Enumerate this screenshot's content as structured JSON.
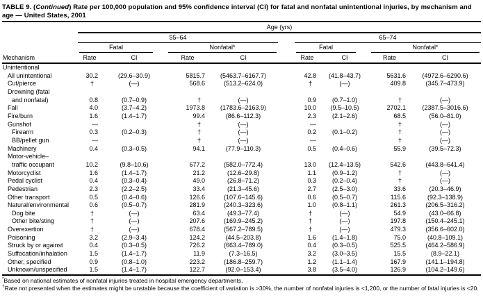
{
  "title": {
    "prefix": "TABLE 9. (",
    "continued": "Continued",
    "rest": ") Rate per 100,000 population and 95% confidence interval (CI) for fatal and nonfatal unintentional injuries, by mechanism and age — United States, 2001"
  },
  "table": {
    "header": {
      "age_span": "Age (yrs)",
      "mechanism": "Mechanism",
      "group_left": "55–64",
      "group_right": "65–74",
      "fatal_label": "Fatal",
      "nonfatal_label": "Nonfatal*",
      "rate_label": "Rate",
      "ci_label": "CI"
    },
    "rows": [
      {
        "label": "Unintentional",
        "indent": 0,
        "cells": [
          "",
          "",
          "",
          "",
          "",
          "",
          "",
          ""
        ]
      },
      {
        "label": "All unintentional",
        "indent": 1,
        "cells": [
          "30.2",
          "(29.6–30.9)",
          "5815.7",
          "(5463.7–6167.7)",
          "42.8",
          "(41.8–43.7)",
          "5631.6",
          "(4972.6–6290.6)"
        ]
      },
      {
        "label": "Cut/pierce",
        "indent": 1,
        "cells": [
          "†",
          "(—)",
          "568.6",
          "(513.2–624.0)",
          "†",
          "(—)",
          "409.8",
          "(345.7–473.9)"
        ]
      },
      {
        "label": "Drowning (fatal",
        "indent": 1,
        "cells": [
          "",
          "",
          "",
          "",
          "",
          "",
          "",
          ""
        ]
      },
      {
        "label": "and nonfatal)",
        "indent": 2,
        "cells": [
          "0.8",
          "(0.7–0.9)",
          "†",
          "(—)",
          "0.9",
          "(0.7–1.0)",
          "†",
          "(—)"
        ]
      },
      {
        "label": "Fall",
        "indent": 1,
        "cells": [
          "4.0",
          "(3.7–4.2)",
          "1973.8",
          "(1783.6–2163.9)",
          "10.0",
          "(9.5–10.5)",
          "2702.1",
          "(2387.5–3016.6)"
        ]
      },
      {
        "label": "Fire/burn",
        "indent": 1,
        "cells": [
          "1.6",
          "(1.4–1.7)",
          "99.4",
          "(86.6–112.3)",
          "2.3",
          "(2.1–2.6)",
          "68.5",
          "(56.0–81.0)"
        ]
      },
      {
        "label": "Gunshot",
        "indent": 1,
        "cells": [
          "—",
          "",
          "†",
          "(—)",
          "—",
          "",
          "†",
          "(—)"
        ]
      },
      {
        "label": "Firearm",
        "indent": 2,
        "cells": [
          "0.3",
          "(0.2–0.3)",
          "†",
          "(—)",
          "0.2",
          "(0.1–0.2)",
          "†",
          "(—)"
        ]
      },
      {
        "label": "BB/pellet gun",
        "indent": 2,
        "cells": [
          "—",
          "",
          "†",
          "(—)",
          "—",
          "",
          "†",
          "(—)"
        ]
      },
      {
        "label": "Machinery",
        "indent": 1,
        "cells": [
          "0.4",
          "(0.3–0.5)",
          "94.1",
          "(77.9–110.3)",
          "0.5",
          "(0.4–0.6)",
          "55.9",
          "(39.5–72.3)"
        ]
      },
      {
        "label": "Motor-vehicle–",
        "indent": 1,
        "cells": [
          "",
          "",
          "",
          "",
          "",
          "",
          "",
          ""
        ]
      },
      {
        "label": "traffic occupant",
        "indent": 2,
        "cells": [
          "10.2",
          "(9.8–10.6)",
          "677.2",
          "(582.0–772.4)",
          "13.0",
          "(12.4–13.5)",
          "542.6",
          "(443.8–641.4)"
        ]
      },
      {
        "label": "Motorcyclist",
        "indent": 1,
        "cells": [
          "1.6",
          "(1.4–1.7)",
          "21.2",
          "(12.6–29.8)",
          "1.1",
          "(0.9–1.2)",
          "†",
          "(—)"
        ]
      },
      {
        "label": "Pedal cyclist",
        "indent": 1,
        "cells": [
          "0.4",
          "(0.3–0.4)",
          "49.0",
          "(26.8–71.2)",
          "0.3",
          "(0.2–0.4)",
          "†",
          "(—)"
        ]
      },
      {
        "label": "Pedestrian",
        "indent": 1,
        "cells": [
          "2.3",
          "(2.2–2.5)",
          "33.4",
          "(21.3–45.6)",
          "2.7",
          "(2.5–3.0)",
          "33.6",
          "(20.3–46.9)"
        ]
      },
      {
        "label": "Other transport",
        "indent": 1,
        "cells": [
          "0.5",
          "(0.4–0.6)",
          "126.6",
          "(107.6–145.6)",
          "0.6",
          "(0.5–0.7)",
          "115.6",
          "(92.3–138.9)"
        ]
      },
      {
        "label": "Natural/environmental",
        "indent": 1,
        "cells": [
          "0.6",
          "(0.5–0.7)",
          "281.9",
          "(240.3–323.6)",
          "1.0",
          "(0.8–1.1)",
          "261.3",
          "(206.5–316.2)"
        ]
      },
      {
        "label": "Dog bite",
        "indent": 2,
        "cells": [
          "†",
          "(—)",
          "63.4",
          "(49.3–77.4)",
          "†",
          "(—)",
          "54.9",
          "(43.0–66.8)"
        ]
      },
      {
        "label": "Other bite/sting",
        "indent": 2,
        "cells": [
          "†",
          "(—)",
          "207.6",
          "(169.9–245.2)",
          "†",
          "(—)",
          "197.8",
          "(150.4–245.1)"
        ]
      },
      {
        "label": "Overexertion",
        "indent": 1,
        "cells": [
          "†",
          "(—)",
          "678.4",
          "(567.2–789.5)",
          "†",
          "(—)",
          "479.3",
          "(356.6–602.0)"
        ]
      },
      {
        "label": "Poisoning",
        "indent": 1,
        "cells": [
          "3.2",
          "(2.9–3.4)",
          "124.2",
          "(44.5–203.8)",
          "1.6",
          "(1.4–1.8)",
          "75.0",
          "(40.8–109.1)"
        ]
      },
      {
        "label": "Struck by or against",
        "indent": 1,
        "cells": [
          "0.4",
          "(0.3–0.5)",
          "726.2",
          "(663.4–789.0)",
          "0.4",
          "(0.3–0.5)",
          "525.5",
          "(464.2–586.9)"
        ]
      },
      {
        "label": "Suffocation/inhalation",
        "indent": 1,
        "cells": [
          "1.5",
          "(1.4–1.7)",
          "11.9",
          "(7.3–16.5)",
          "3.2",
          "(3.0–3.5)",
          "15.5",
          "(8.9–22.1)"
        ]
      },
      {
        "label": "Other, specified",
        "indent": 1,
        "cells": [
          "0.9",
          "(0.8–1.0)",
          "223.2",
          "(186.8–259.7)",
          "1.2",
          "(1.1–1.4)",
          "167.9",
          "(141.1–194.8)"
        ]
      },
      {
        "label": "Unknown/unspecified",
        "indent": 1,
        "cells": [
          "1.5",
          "(1.4–1.7)",
          "122.7",
          "(92.0–153.4)",
          "3.8",
          "(3.5–4.0)",
          "126.9",
          "(104.2–149.6)"
        ]
      }
    ]
  },
  "footnotes": [
    {
      "marker": "*",
      "text": "Based on national estimates of nonfatal injuries treated in hospital emergency departments."
    },
    {
      "marker": "†",
      "text": "Rate not presented when the estimates might be unstable because the coefficient of variation is >30%, the number of nonfatal injuries is <1,200, or the number of fatal injuries is <20."
    }
  ],
  "colors": {
    "text": "#000000",
    "background": "#ffffff",
    "rule": "#000000"
  }
}
